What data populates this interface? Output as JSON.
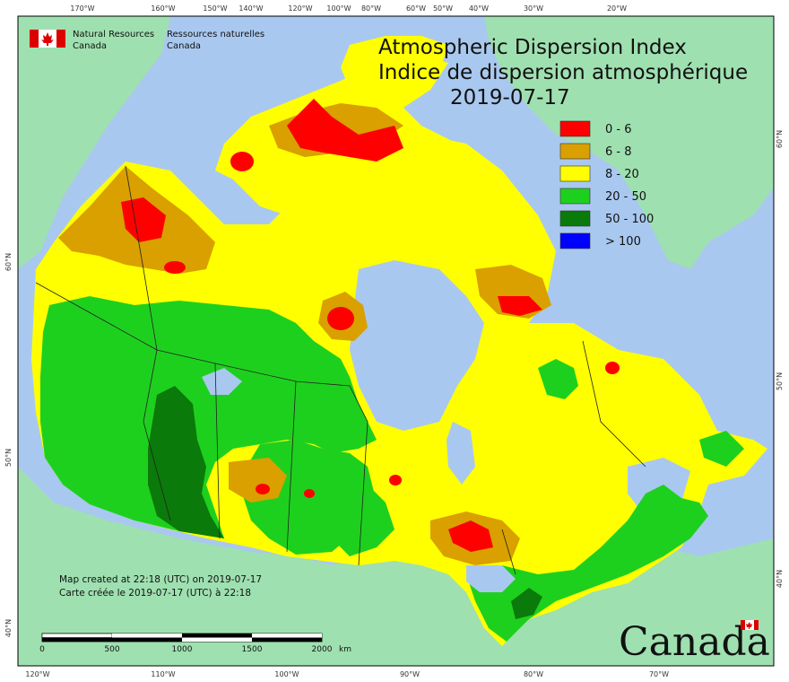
{
  "title_en": "Atmospheric Dispersion Index",
  "title_fr": "Indice de dispersion atmosphérique",
  "date": "2019-07-17",
  "agency": {
    "en_line1": "Natural Resources",
    "en_line2": "Canada",
    "fr_line1": "Ressources naturelles",
    "fr_line2": "Canada"
  },
  "wordmark": "Canada",
  "legend": [
    {
      "label": "0 - 6",
      "color": "#ff0000"
    },
    {
      "label": "6 - 8",
      "color": "#d9a000"
    },
    {
      "label": "8 - 20",
      "color": "#ffff00"
    },
    {
      "label": "20 - 50",
      "color": "#1ed01e"
    },
    {
      "label": "50 - 100",
      "color": "#0a7a0a"
    },
    {
      "label": "> 100",
      "color": "#0000ff"
    }
  ],
  "notes": {
    "line1": "Map created at 22:18 (UTC) on 2019-07-17",
    "line2": "Carte créée le 2019-07-17 (UTC) à 22:18"
  },
  "top_longitudes": [
    "170°W",
    "160°W",
    "150°W",
    "140°W",
    "120°W",
    "100°W",
    "80°W",
    "60°W",
    "50°W",
    "40°W",
    "30°W",
    "20°W"
  ],
  "bottom_longitudes": [
    "120°W",
    "110°W",
    "100°W",
    "90°W",
    "80°W",
    "70°W"
  ],
  "left_latitudes": [
    "60°N",
    "50°N",
    "40°N"
  ],
  "right_latitudes": [
    "60°N",
    "50°N",
    "40°N"
  ],
  "scale": {
    "labels": [
      "0",
      "500",
      "1000",
      "1500",
      "2000"
    ],
    "unit": "km"
  },
  "colors": {
    "ocean": "#a9c8ef",
    "land_other": "#9fe0b0"
  }
}
